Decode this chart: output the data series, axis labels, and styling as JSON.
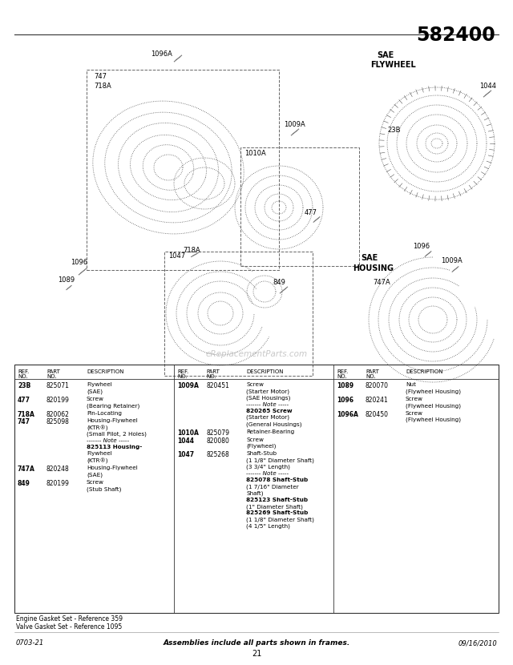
{
  "title": "582400",
  "bg_color": "#ffffff",
  "footer_left": "0703-21",
  "footer_center": "Assemblies include all parts shown in frames.",
  "footer_right": "09/16/2010",
  "footer_page": "21",
  "footer_notes": "Engine Gasket Set - Reference 359\nValve Gasket Set - Reference 1095",
  "watermark": "eReplacementParts.com",
  "col1_data": [
    [
      "23B",
      "825071",
      [
        "Flywheel",
        "(SAE)"
      ]
    ],
    [
      "477",
      "820199",
      [
        "Screw",
        "(Bearing Retainer)"
      ]
    ],
    [
      "718A",
      "820062",
      [
        "Pin-Locating"
      ]
    ],
    [
      "747",
      "825098",
      [
        "Housing-Flywheel",
        "(KTR®)",
        "(Small Pilot, 2 Holes)",
        "------- Note -----",
        "825113 Housing-",
        "Flywheel",
        "(KTR®)"
      ]
    ],
    [
      "747A",
      "820248",
      [
        "Housing-Flywheel",
        "(SAE)"
      ]
    ],
    [
      "849",
      "820199",
      [
        "Screw",
        "(Stub Shaft)"
      ]
    ]
  ],
  "col2_data": [
    [
      "1009A",
      "820451",
      [
        "Screw",
        "(Starter Motor)",
        "(SAE Housings)",
        "------- Note -----",
        "820265 Screw",
        "(Starter Motor)",
        "(General Housings)"
      ]
    ],
    [
      "1010A",
      "825079",
      [
        "Retainer-Bearing"
      ]
    ],
    [
      "1044",
      "820080",
      [
        "Screw",
        "(Flywheel)"
      ]
    ],
    [
      "1047",
      "825268",
      [
        "Shaft-Stub",
        "(1 1/8\" Diameter Shaft)",
        "(3 3/4\" Length)",
        "------- Note -----",
        "825078 Shaft-Stub",
        "(1 7/16\" Diameter",
        "Shaft)",
        "825123 Shaft-Stub",
        "(1\" Diameter Shaft)",
        "825269 Shaft-Stub",
        "(1 1/8\" Diameter Shaft)",
        "(4 1/5\" Length)"
      ]
    ]
  ],
  "col3_data": [
    [
      "1089",
      "820070",
      [
        "Nut",
        "(Flywheel Housing)"
      ]
    ],
    [
      "1096",
      "820241",
      [
        "Screw",
        "(Flywheel Housing)"
      ]
    ],
    [
      "1096A",
      "820450",
      [
        "Screw",
        "(Flywheel Housing)"
      ]
    ]
  ]
}
